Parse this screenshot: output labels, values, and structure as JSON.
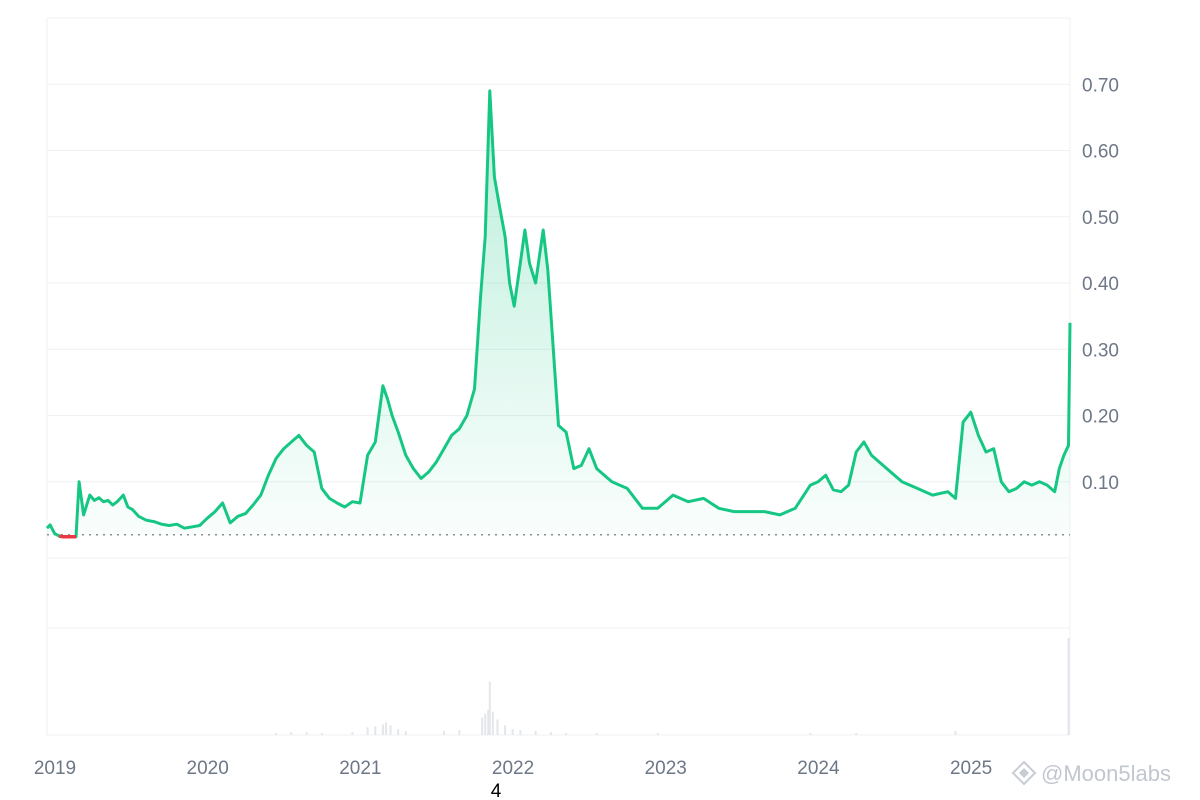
{
  "chart_data": {
    "type": "area",
    "title": "",
    "xlabel": "",
    "ylabel": "",
    "x_tick_labels": [
      "2019",
      "2020",
      "2021",
      "2022",
      "2023",
      "2024",
      "2025"
    ],
    "y_tick_labels": [
      "0.10",
      "0.20",
      "0.30",
      "0.40",
      "0.50",
      "0.60",
      "0.70"
    ],
    "y_ticks": [
      0.1,
      0.2,
      0.3,
      0.4,
      0.5,
      0.6,
      0.7
    ],
    "ylim": [
      -0.015,
      0.8
    ],
    "xlim": [
      2019.0,
      2025.7
    ],
    "grid": true,
    "baseline": 0.02,
    "axis_marker": "4",
    "colors": {
      "up": "#16c784",
      "down": "#ea3943",
      "grid": "#eef0f3",
      "text": "#6e7787"
    },
    "series": [
      {
        "type": "line",
        "x": [
          2019.0,
          2019.02,
          2019.05,
          2019.08,
          2019.11,
          2019.14,
          2019.17,
          2019.19,
          2019.21,
          2019.24,
          2019.28,
          2019.31,
          2019.34,
          2019.37,
          2019.4,
          2019.43,
          2019.46,
          2019.5,
          2019.53,
          2019.56,
          2019.6,
          2019.65,
          2019.7,
          2019.75,
          2019.8,
          2019.85,
          2019.9,
          2019.95,
          2020.0,
          2020.05,
          2020.1,
          2020.15,
          2020.2,
          2020.25,
          2020.3,
          2020.35,
          2020.4,
          2020.45,
          2020.5,
          2020.55,
          2020.6,
          2020.65,
          2020.7,
          2020.75,
          2020.8,
          2020.85,
          2020.9,
          2020.95,
          2021.0,
          2021.05,
          2021.1,
          2021.15,
          2021.2,
          2021.23,
          2021.26,
          2021.3,
          2021.35,
          2021.4,
          2021.45,
          2021.5,
          2021.55,
          2021.6,
          2021.65,
          2021.7,
          2021.75,
          2021.8,
          2021.84,
          2021.87,
          2021.9,
          2021.93,
          2021.96,
          2022.0,
          2022.03,
          2022.06,
          2022.1,
          2022.13,
          2022.16,
          2022.2,
          2022.25,
          2022.28,
          2022.31,
          2022.35,
          2022.4,
          2022.45,
          2022.5,
          2022.55,
          2022.6,
          2022.65,
          2022.7,
          2022.75,
          2022.8,
          2022.9,
          2023.0,
          2023.1,
          2023.2,
          2023.3,
          2023.4,
          2023.5,
          2023.6,
          2023.7,
          2023.8,
          2023.9,
          2024.0,
          2024.05,
          2024.1,
          2024.15,
          2024.2,
          2024.25,
          2024.3,
          2024.35,
          2024.4,
          2024.5,
          2024.6,
          2024.7,
          2024.8,
          2024.9,
          2024.95,
          2025.0,
          2025.05,
          2025.1,
          2025.15,
          2025.2,
          2025.25,
          2025.3,
          2025.35,
          2025.4,
          2025.45,
          2025.5,
          2025.55,
          2025.6,
          2025.63,
          2025.66,
          2025.69,
          2025.7
        ],
        "y": [
          0.03,
          0.035,
          0.022,
          0.018,
          0.017,
          0.017,
          0.017,
          0.017,
          0.1,
          0.05,
          0.08,
          0.072,
          0.076,
          0.07,
          0.072,
          0.065,
          0.07,
          0.08,
          0.062,
          0.058,
          0.048,
          0.042,
          0.04,
          0.036,
          0.034,
          0.036,
          0.03,
          0.032,
          0.034,
          0.045,
          0.055,
          0.068,
          0.038,
          0.048,
          0.052,
          0.065,
          0.08,
          0.11,
          0.135,
          0.15,
          0.16,
          0.17,
          0.155,
          0.145,
          0.09,
          0.075,
          0.068,
          0.062,
          0.07,
          0.068,
          0.14,
          0.16,
          0.245,
          0.225,
          0.2,
          0.175,
          0.14,
          0.12,
          0.105,
          0.115,
          0.13,
          0.15,
          0.17,
          0.18,
          0.2,
          0.24,
          0.38,
          0.47,
          0.69,
          0.56,
          0.52,
          0.47,
          0.4,
          0.365,
          0.43,
          0.48,
          0.43,
          0.4,
          0.48,
          0.42,
          0.32,
          0.185,
          0.175,
          0.12,
          0.125,
          0.15,
          0.12,
          0.11,
          0.1,
          0.095,
          0.09,
          0.06,
          0.06,
          0.08,
          0.07,
          0.075,
          0.06,
          0.055,
          0.055,
          0.055,
          0.05,
          0.06,
          0.095,
          0.1,
          0.11,
          0.088,
          0.085,
          0.095,
          0.145,
          0.16,
          0.14,
          0.12,
          0.1,
          0.09,
          0.08,
          0.085,
          0.075,
          0.19,
          0.205,
          0.17,
          0.145,
          0.15,
          0.1,
          0.085,
          0.09,
          0.1,
          0.095,
          0.1,
          0.095,
          0.085,
          0.12,
          0.14,
          0.155,
          0.34
        ]
      }
    ],
    "volume": {
      "x": [
        2020.5,
        2020.6,
        2020.7,
        2020.8,
        2021.0,
        2021.1,
        2021.15,
        2021.2,
        2021.22,
        2021.25,
        2021.3,
        2021.35,
        2021.6,
        2021.7,
        2021.85,
        2021.87,
        2021.89,
        2021.9,
        2021.92,
        2021.95,
        2022.0,
        2022.05,
        2022.1,
        2022.2,
        2022.3,
        2022.4,
        2022.6,
        2023.0,
        2024.0,
        2024.3,
        2024.95,
        2025.69
      ],
      "y": [
        2,
        3,
        3,
        2,
        3,
        8,
        9,
        11,
        13,
        10,
        6,
        4,
        4,
        5,
        18,
        22,
        26,
        55,
        24,
        16,
        10,
        6,
        5,
        4,
        3,
        2,
        2,
        2,
        2,
        2,
        4,
        100
      ]
    }
  },
  "watermark": "@Moon5labs"
}
